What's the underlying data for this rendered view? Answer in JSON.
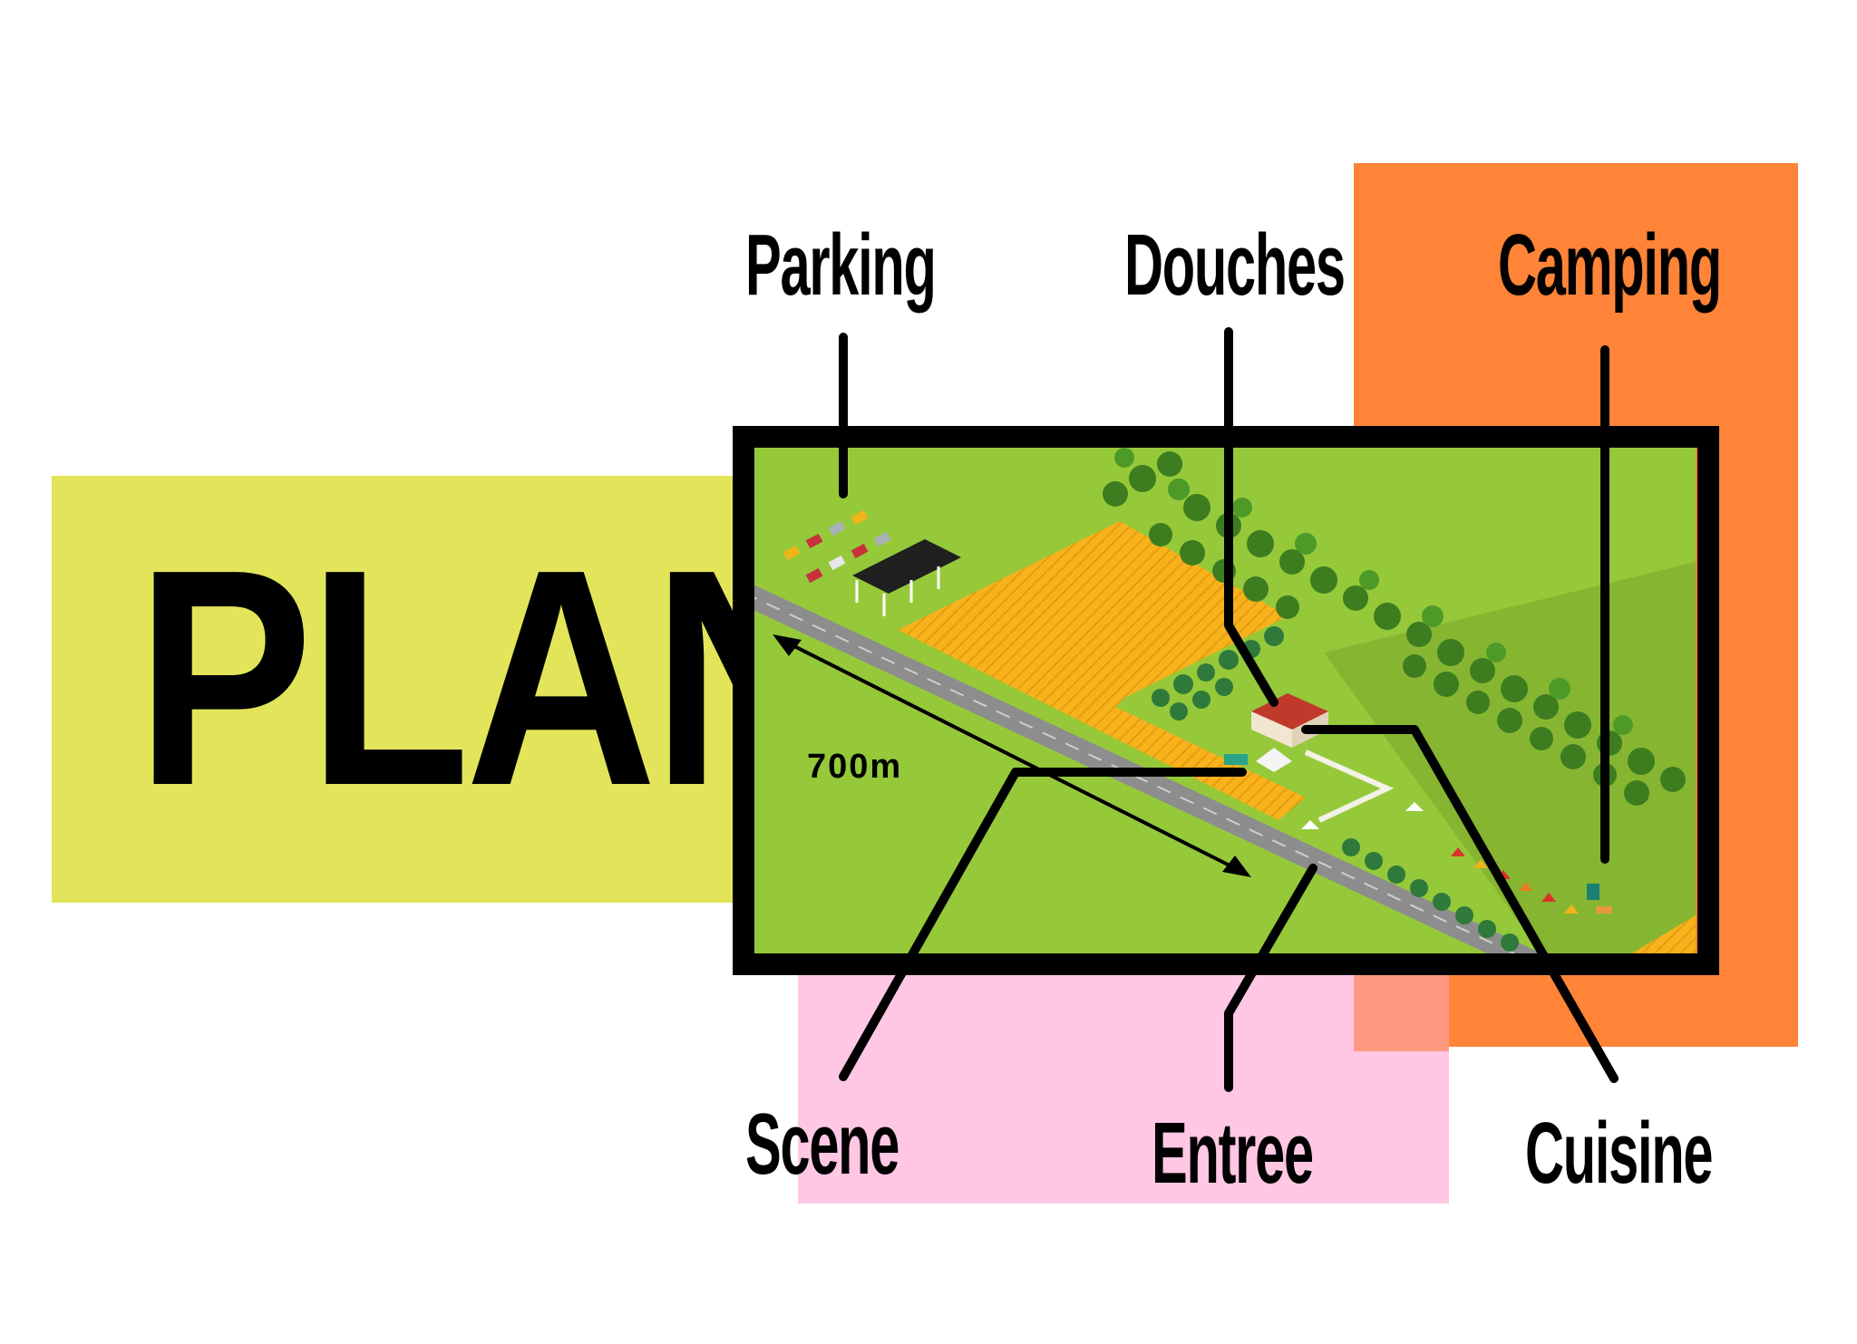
{
  "title": "PLAN",
  "colors": {
    "yellow_panel": "#e2e55a",
    "orange_panel": "#ff8438",
    "pink_panel": "#ffc7e4",
    "map_grass": "#95c93a",
    "map_frame": "#000000"
  },
  "labels": {
    "parking": "Parking",
    "douches": "Douches",
    "camping": "Camping",
    "scene": "Scene",
    "entree": "Entree",
    "cuisine": "Cuisine"
  },
  "distance_label": "700m",
  "icons": [
    "car-icon",
    "tree-icon",
    "tent-icon",
    "building-icon"
  ]
}
